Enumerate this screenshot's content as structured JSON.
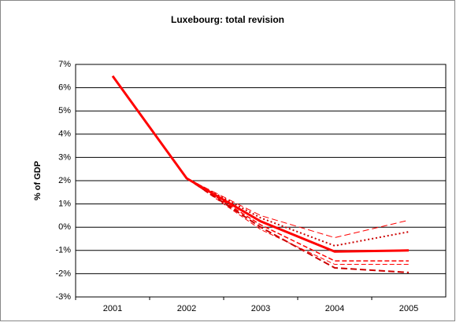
{
  "chart_data": {
    "type": "line",
    "title": "Luxebourg: total revision",
    "y_label": "% of GDP",
    "categories": [
      "2001",
      "2002",
      "2003",
      "2004",
      "2005"
    ],
    "ylim": [
      -3,
      7
    ],
    "yticks": [
      {
        "value": -3,
        "label": "-3%"
      },
      {
        "value": -2,
        "label": "-2%"
      },
      {
        "value": -1,
        "label": "-1%"
      },
      {
        "value": 0,
        "label": "0%"
      },
      {
        "value": 1,
        "label": "1%"
      },
      {
        "value": 2,
        "label": "2%"
      },
      {
        "value": 3,
        "label": "3%"
      },
      {
        "value": 4,
        "label": "4%"
      },
      {
        "value": 5,
        "label": "5%"
      },
      {
        "value": 6,
        "label": "6%"
      },
      {
        "value": 7,
        "label": "7%"
      }
    ],
    "grid": true,
    "series": [
      {
        "color": "#ff0000",
        "dash": "8,4",
        "width": 1,
        "values": [
          null,
          2.1,
          0.5,
          -0.45,
          0.3
        ]
      },
      {
        "color": "#cc0000",
        "dash": "2,3",
        "width": 2,
        "values": [
          null,
          2.1,
          0.4,
          -0.8,
          -0.2
        ]
      },
      {
        "color": "#ff0000",
        "dash": "6,3",
        "width": 1.5,
        "values": [
          null,
          2.1,
          0.1,
          -1.45,
          -1.45
        ]
      },
      {
        "color": "#ff0000",
        "dash": "6,3",
        "width": 1,
        "values": [
          null,
          2.1,
          -0.1,
          -1.6,
          -1.6
        ]
      },
      {
        "color": "#cc0000",
        "dash": "8,4",
        "width": 2,
        "values": [
          null,
          2.1,
          0.0,
          -1.75,
          -1.95
        ]
      },
      {
        "color": "#ff0000",
        "dash": "",
        "width": 3,
        "values": [
          6.5,
          2.1,
          0.25,
          -1.05,
          -1.0
        ]
      }
    ]
  }
}
